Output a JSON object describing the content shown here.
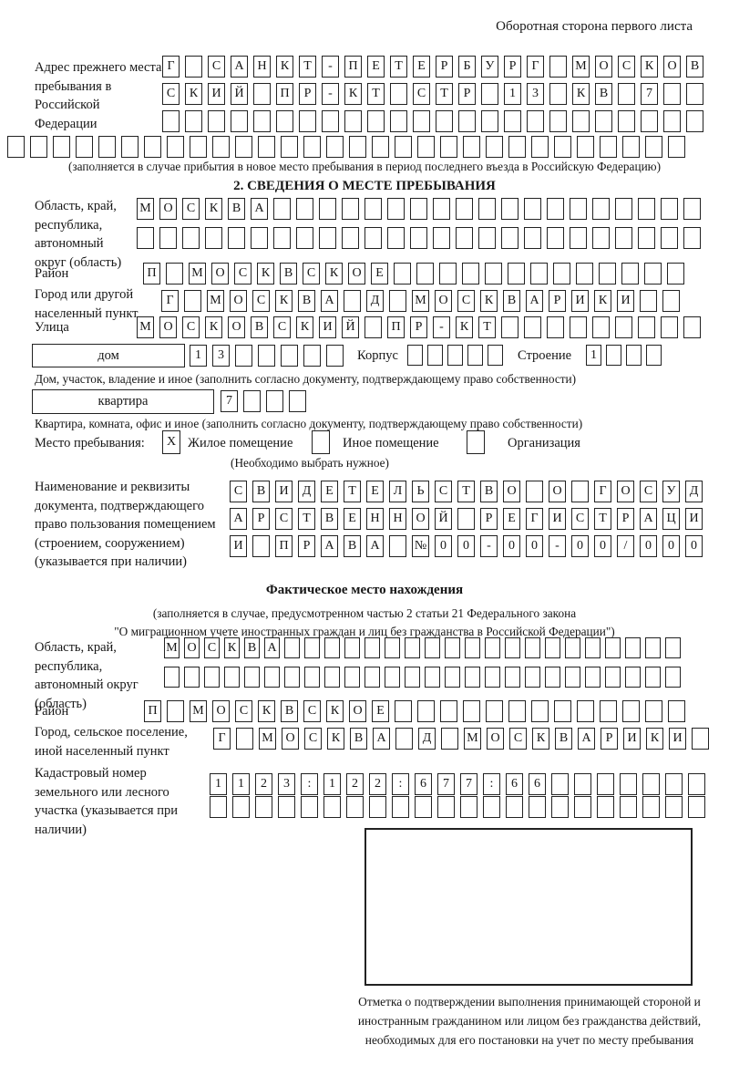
{
  "page": {
    "title": "Оборотная сторона первого листа"
  },
  "prev_address": {
    "label": "Адрес прежнего места пребывания в Российской Федерации",
    "row1": "Г САНКТ-ПЕТЕРБУРГ МОСКОВ",
    "row2": "СКИЙ ПР-КТ СТР 13 КВ 7  ",
    "row3": "                        ",
    "row4": "                              ",
    "note": "(заполняется в случае прибытия в новое место пребывания в период последнего въезда в Российскую Федерацию)"
  },
  "section2": {
    "title": "2. СВЕДЕНИЯ О МЕСТЕ ПРЕБЫВАНИЯ",
    "region": {
      "label": "Область, край, республика, автономный округ (область)",
      "row1": "МОСКВА                   ",
      "row2": "                         "
    },
    "district": {
      "label": "Район",
      "row": "П МОСКВСКОЕ             "
    },
    "city": {
      "label": "Город или другой населенный пункт",
      "row": "Г МОСКВА Д МОСКВАРИКИ  "
    },
    "street": {
      "label": "Улица",
      "row": "МОСКОВСКИЙ ПР-КТ         "
    },
    "house": {
      "type_label": "дом",
      "row": "13     ",
      "note": "Дом, участок, владение и иное (заполнить согласно документу, подтверждающему право собственности)"
    },
    "korpus": {
      "label": "Корпус",
      "row": "     "
    },
    "stroenie": {
      "label": "Строение",
      "row": "1   "
    },
    "apartment": {
      "type_label": "квартира",
      "row": "7   ",
      "note": "Квартира, комната, офис и иное (заполнить согласно документу, подтверждающему право собственности)"
    },
    "stay_type": {
      "label": "Место пребывания:",
      "options": [
        {
          "label": "Жилое помещение",
          "mark": "X"
        },
        {
          "label": "Иное помещение",
          "mark": ""
        },
        {
          "label": "Организация",
          "mark": ""
        }
      ],
      "note": "(Необходимо выбрать нужное)"
    },
    "document": {
      "label": "Наименование и реквизиты документа, подтверждающего право пользования помещением (строением, сооружением) (указывается при наличии)",
      "row1": "СВИДЕТЕЛЬСТВО О ГОСУД",
      "row2": "АРСТВЕННОЙ РЕГИСТРАЦИ",
      "row3": "И ПРАВА №00-00-00/000"
    }
  },
  "actual_location": {
    "title": "Фактическое место нахождения",
    "note1": "(заполняется в случае, предусмотренном частью 2 статьи 21 Федерального закона",
    "note2": "\"О миграционном учете иностранных граждан и лиц без гражданства в Российской Федерации\")",
    "region": {
      "label": "Область, край, республика, автономный округ (область)",
      "row1": "МОСКВА                    ",
      "row2": "                          "
    },
    "district": {
      "label": "Район",
      "row": "П МОСКВСКОЕ             "
    },
    "city": {
      "label": "Город, сельское поселение, иной населенный пункт",
      "row": "Г МОСКВА Д МОСКВАРИКИ "
    },
    "cadastre": {
      "label": "Кадастровый номер земельного или лесного участка (указывается при наличии)",
      "row1": "1123:122:677:66       ",
      "row2": "                      "
    }
  },
  "stamp": {
    "caption": "Отметка о подтверждении выполнения принимающей стороной и иностранным гражданином или лицом без гражданства действий, необходимых для его постановки на учет по месту пребывания"
  }
}
